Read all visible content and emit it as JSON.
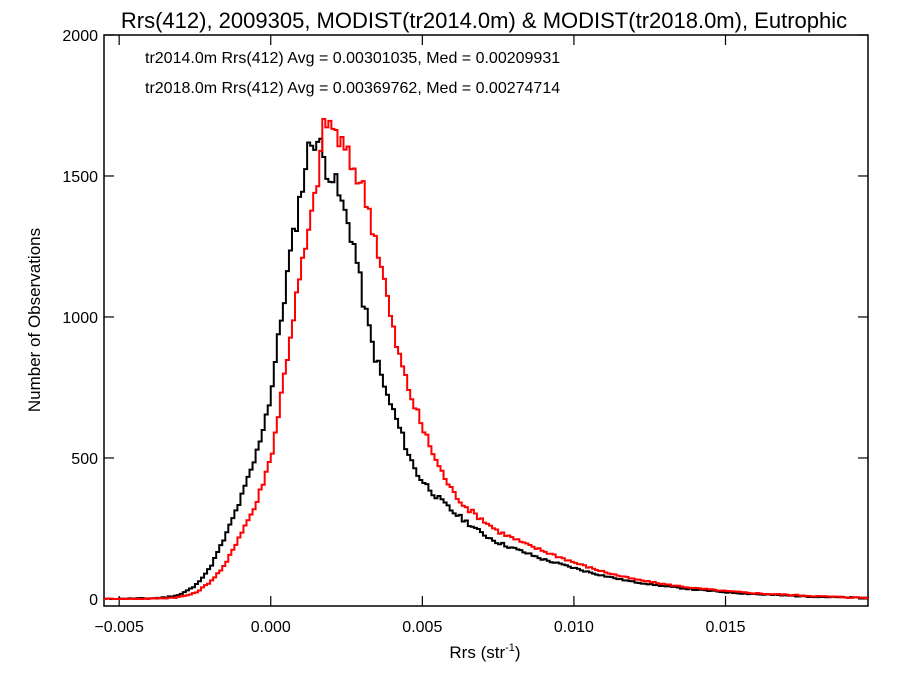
{
  "chart_data": {
    "type": "line",
    "title": "Rrs(412), 2009305, MODIST(tr2014.0m) & MODIST(tr2018.0m), Eutrophic",
    "xlabel": "Rrs (str",
    "xlabel_superscript": "-1",
    "xlabel_suffix": ")",
    "ylabel": "Number of Observations",
    "xlim": [
      -0.0055,
      0.0197
    ],
    "ylim": [
      -25,
      2000
    ],
    "xticks": [
      -0.005,
      0.0,
      0.005,
      0.01,
      0.015
    ],
    "xtick_labels": [
      "−0.005",
      "0.000",
      "0.005",
      "0.010",
      "0.015"
    ],
    "yticks": [
      0,
      500,
      1000,
      1500,
      2000
    ],
    "ytick_labels": [
      "0",
      "500",
      "1000",
      "1500",
      "2000"
    ],
    "grid": false,
    "legend_placement": "top-left",
    "series": [
      {
        "name": "tr2014.0m",
        "legend": "tr2014.0m Rrs(412) Avg = 0.00301035, Med = 0.00209931",
        "color": "#000000",
        "points": [
          [
            -0.0055,
            0
          ],
          [
            -0.004,
            2
          ],
          [
            -0.0035,
            5
          ],
          [
            -0.003,
            15
          ],
          [
            -0.0025,
            45
          ],
          [
            -0.002,
            110
          ],
          [
            -0.0015,
            220
          ],
          [
            -0.001,
            350
          ],
          [
            -0.0005,
            500
          ],
          [
            0.0,
            720
          ],
          [
            0.0002,
            880
          ],
          [
            0.0004,
            1030
          ],
          [
            0.0006,
            1190
          ],
          [
            0.0008,
            1310
          ],
          [
            0.001,
            1440
          ],
          [
            0.0012,
            1570
          ],
          [
            0.0014,
            1640
          ],
          [
            0.0016,
            1620
          ],
          [
            0.0018,
            1540
          ],
          [
            0.002,
            1510
          ],
          [
            0.0022,
            1450
          ],
          [
            0.0024,
            1380
          ],
          [
            0.0026,
            1320
          ],
          [
            0.0028,
            1230
          ],
          [
            0.003,
            1090
          ],
          [
            0.0032,
            980
          ],
          [
            0.0034,
            880
          ],
          [
            0.0036,
            810
          ],
          [
            0.0038,
            730
          ],
          [
            0.004,
            680
          ],
          [
            0.0042,
            620
          ],
          [
            0.0044,
            560
          ],
          [
            0.0046,
            500
          ],
          [
            0.0048,
            450
          ],
          [
            0.005,
            420
          ],
          [
            0.0055,
            360
          ],
          [
            0.006,
            310
          ],
          [
            0.0065,
            270
          ],
          [
            0.007,
            230
          ],
          [
            0.0075,
            200
          ],
          [
            0.008,
            180
          ],
          [
            0.0085,
            160
          ],
          [
            0.009,
            140
          ],
          [
            0.0095,
            125
          ],
          [
            0.01,
            110
          ],
          [
            0.0105,
            95
          ],
          [
            0.011,
            82
          ],
          [
            0.0115,
            70
          ],
          [
            0.012,
            60
          ],
          [
            0.013,
            45
          ],
          [
            0.014,
            33
          ],
          [
            0.015,
            24
          ],
          [
            0.016,
            17
          ],
          [
            0.017,
            12
          ],
          [
            0.018,
            8
          ],
          [
            0.019,
            5
          ],
          [
            0.0197,
            4
          ]
        ]
      },
      {
        "name": "tr2018.0m",
        "legend": "tr2018.0m Rrs(412) Avg = 0.00369762, Med = 0.00274714",
        "color": "#ff0000",
        "points": [
          [
            -0.0055,
            0
          ],
          [
            -0.004,
            1
          ],
          [
            -0.0035,
            3
          ],
          [
            -0.003,
            7
          ],
          [
            -0.0025,
            20
          ],
          [
            -0.002,
            60
          ],
          [
            -0.0015,
            120
          ],
          [
            -0.001,
            230
          ],
          [
            -0.0005,
            330
          ],
          [
            0.0,
            500
          ],
          [
            0.0002,
            620
          ],
          [
            0.0004,
            760
          ],
          [
            0.0006,
            900
          ],
          [
            0.0008,
            1040
          ],
          [
            0.001,
            1160
          ],
          [
            0.0012,
            1270
          ],
          [
            0.0014,
            1380
          ],
          [
            0.0016,
            1540
          ],
          [
            0.0018,
            1700
          ],
          [
            0.002,
            1680
          ],
          [
            0.0022,
            1640
          ],
          [
            0.0024,
            1600
          ],
          [
            0.0026,
            1550
          ],
          [
            0.0028,
            1520
          ],
          [
            0.003,
            1470
          ],
          [
            0.0032,
            1400
          ],
          [
            0.0034,
            1310
          ],
          [
            0.0036,
            1210
          ],
          [
            0.0038,
            1100
          ],
          [
            0.004,
            970
          ],
          [
            0.0042,
            880
          ],
          [
            0.0044,
            800
          ],
          [
            0.0046,
            730
          ],
          [
            0.0048,
            670
          ],
          [
            0.005,
            610
          ],
          [
            0.0055,
            480
          ],
          [
            0.006,
            380
          ],
          [
            0.0065,
            320
          ],
          [
            0.007,
            280
          ],
          [
            0.0075,
            240
          ],
          [
            0.008,
            215
          ],
          [
            0.0085,
            190
          ],
          [
            0.009,
            170
          ],
          [
            0.0095,
            150
          ],
          [
            0.01,
            130
          ],
          [
            0.0105,
            112
          ],
          [
            0.011,
            96
          ],
          [
            0.0115,
            82
          ],
          [
            0.012,
            70
          ],
          [
            0.013,
            52
          ],
          [
            0.014,
            38
          ],
          [
            0.015,
            28
          ],
          [
            0.016,
            20
          ],
          [
            0.017,
            15
          ],
          [
            0.018,
            10
          ],
          [
            0.019,
            6
          ],
          [
            0.0197,
            4
          ]
        ]
      }
    ]
  }
}
